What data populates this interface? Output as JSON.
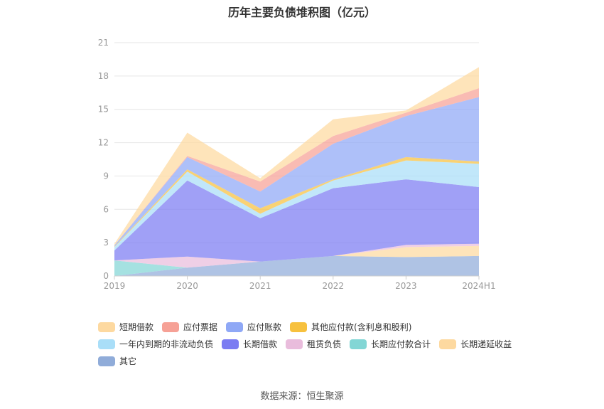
{
  "chart_data": {
    "type": "area",
    "stacked": true,
    "title": "历年主要负债堆积图（亿元）",
    "categories": [
      "2019",
      "2020",
      "2021",
      "2022",
      "2023",
      "2024H1"
    ],
    "ylim": [
      0,
      21
    ],
    "yticks": [
      "0",
      "3",
      "6",
      "9",
      "12",
      "15",
      "18",
      "21"
    ],
    "grid": true,
    "legend_position": "bottom",
    "series": [
      {
        "name": "短期借款",
        "color": "#fdd9a0",
        "values": [
          0.15,
          2.1,
          0.3,
          1.5,
          0.2,
          1.9
        ]
      },
      {
        "name": "应付票据",
        "color": "#f6a196",
        "values": [
          0.0,
          0.1,
          0.9,
          0.7,
          0.3,
          0.8
        ]
      },
      {
        "name": "应付账款",
        "color": "#8fa8f6",
        "values": [
          0.1,
          1.1,
          1.5,
          3.2,
          3.7,
          5.8
        ]
      },
      {
        "name": "其他应付款(含利息和股利)",
        "color": "#f7c13e",
        "values": [
          0.05,
          0.2,
          0.5,
          0.1,
          0.3,
          0.2
        ]
      },
      {
        "name": "一年内到期的非流动负债",
        "color": "#a9def8",
        "values": [
          0.3,
          0.8,
          0.4,
          0.7,
          1.7,
          2.1
        ]
      },
      {
        "name": "长期借款",
        "color": "#7b7cf2",
        "values": [
          0.9,
          6.85,
          3.9,
          6.1,
          5.9,
          5.1
        ]
      },
      {
        "name": "租赁负债",
        "color": "#e9bcdc",
        "values": [
          0.0,
          1.0,
          0.0,
          0.0,
          0.2,
          0.2
        ]
      },
      {
        "name": "长期应付款合计",
        "color": "#82d6d5",
        "values": [
          1.4,
          0.0,
          0.0,
          0.0,
          0.0,
          0.0
        ]
      },
      {
        "name": "长期递延收益",
        "color": "#fdd9a0",
        "values": [
          0.0,
          0.0,
          0.0,
          0.0,
          0.9,
          0.9
        ]
      },
      {
        "name": "其它",
        "color": "#90acd9",
        "values": [
          0.0,
          0.75,
          1.3,
          1.8,
          1.7,
          1.8
        ]
      }
    ]
  },
  "source": "数据来源：恒生聚源"
}
